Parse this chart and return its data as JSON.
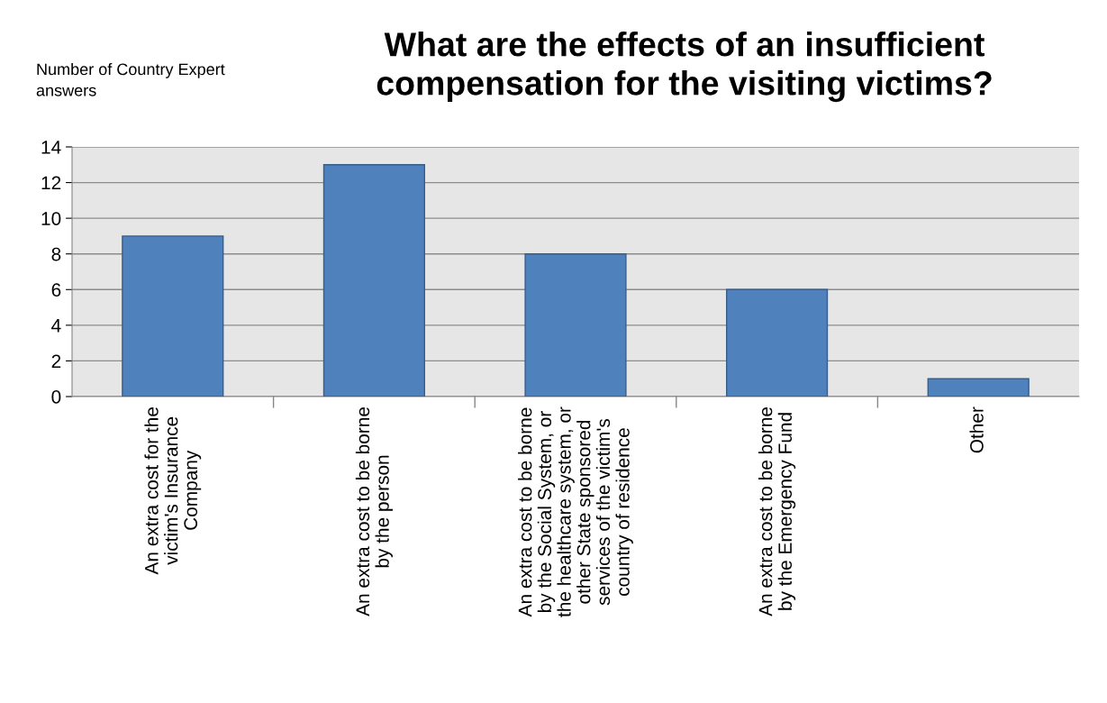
{
  "chart_data": {
    "type": "bar",
    "title": "What are the effects of an insufficient\ncompensation for the visiting victims?",
    "ylabel": "Number of Country Expert\nanswers",
    "categories": [
      "An extra cost for the\nvictim's Insurance\nCompany",
      "An extra cost to be borne\nby the person",
      "An extra cost to be borne\nby the Social System, or\nthe healthcare system, or\nother State sponsored\nservices of the victim's\ncountry of residence",
      "An extra cost to be borne\nby the Emergency Fund",
      "Other"
    ],
    "values": [
      9,
      13,
      8,
      6,
      1
    ],
    "color": "#4f81bd",
    "ylim": [
      0,
      14
    ],
    "yticks": [
      0,
      2,
      4,
      6,
      8,
      10,
      12,
      14
    ],
    "grid": "y"
  }
}
